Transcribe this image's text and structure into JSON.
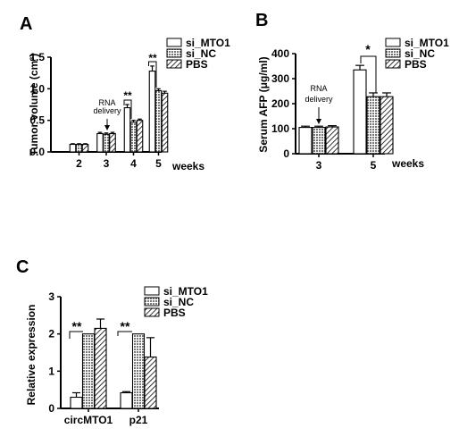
{
  "legend": {
    "series": [
      "si_MTO1",
      "si_NC",
      "PBS"
    ]
  },
  "chart_data": [
    {
      "panel": "A",
      "type": "bar",
      "ylabel": "Tumor volume (cm³)",
      "xlabel": "weeks",
      "categories": [
        "2",
        "3",
        "4",
        "5"
      ],
      "ylim": [
        0,
        1.5
      ],
      "yticks": [
        "0.0",
        "0.5",
        "1.0",
        "1.5"
      ],
      "series": [
        {
          "name": "si_MTO1",
          "values": [
            0.12,
            0.29,
            0.7,
            1.28
          ],
          "errors": [
            0.01,
            0.02,
            0.05,
            0.08
          ]
        },
        {
          "name": "si_NC",
          "values": [
            0.12,
            0.28,
            0.47,
            0.97
          ],
          "errors": [
            0.01,
            0.02,
            0.03,
            0.03
          ]
        },
        {
          "name": "PBS",
          "values": [
            0.12,
            0.29,
            0.5,
            0.93
          ],
          "errors": [
            0.01,
            0.02,
            0.02,
            0.03
          ]
        }
      ],
      "annotations": [
        {
          "text": "RNA delivery",
          "category": "3"
        },
        {
          "text": "**",
          "category": "4"
        },
        {
          "text": "**",
          "category": "5"
        }
      ],
      "legend_position": "top-right",
      "grid": false
    },
    {
      "panel": "B",
      "type": "bar",
      "ylabel": "Serum AFP (μg/ml)",
      "xlabel": "weeks",
      "categories": [
        "3",
        "5"
      ],
      "ylim": [
        0,
        400
      ],
      "yticks": [
        "0",
        "100",
        "200",
        "300",
        "400"
      ],
      "series": [
        {
          "name": "si_MTO1",
          "values": [
            105,
            335
          ],
          "errors": [
            5,
            18
          ]
        },
        {
          "name": "si_NC",
          "values": [
            105,
            228
          ],
          "errors": [
            5,
            15
          ]
        },
        {
          "name": "PBS",
          "values": [
            107,
            228
          ],
          "errors": [
            5,
            15
          ]
        }
      ],
      "annotations": [
        {
          "text": "RNA delivery",
          "category": "3"
        },
        {
          "text": "*",
          "category": "5"
        }
      ],
      "legend_position": "top-right",
      "grid": false
    },
    {
      "panel": "C",
      "type": "bar",
      "ylabel": "Relative expression",
      "xlabel": "",
      "categories": [
        "circMTO1",
        "p21"
      ],
      "ylim": [
        0,
        3
      ],
      "yticks": [
        "0",
        "1",
        "2",
        "3"
      ],
      "series": [
        {
          "name": "si_MTO1",
          "values": [
            0.3,
            0.42
          ],
          "errors": [
            0.12,
            0.03
          ]
        },
        {
          "name": "si_NC",
          "values": [
            2.0,
            2.0
          ],
          "errors": [
            0.0,
            0.0
          ]
        },
        {
          "name": "PBS",
          "values": [
            2.15,
            1.38
          ],
          "errors": [
            0.25,
            0.52
          ]
        }
      ],
      "annotations": [
        {
          "text": "**",
          "category": "circMTO1"
        },
        {
          "text": "**",
          "category": "p21"
        }
      ],
      "legend_position": "top-right",
      "grid": false
    }
  ]
}
